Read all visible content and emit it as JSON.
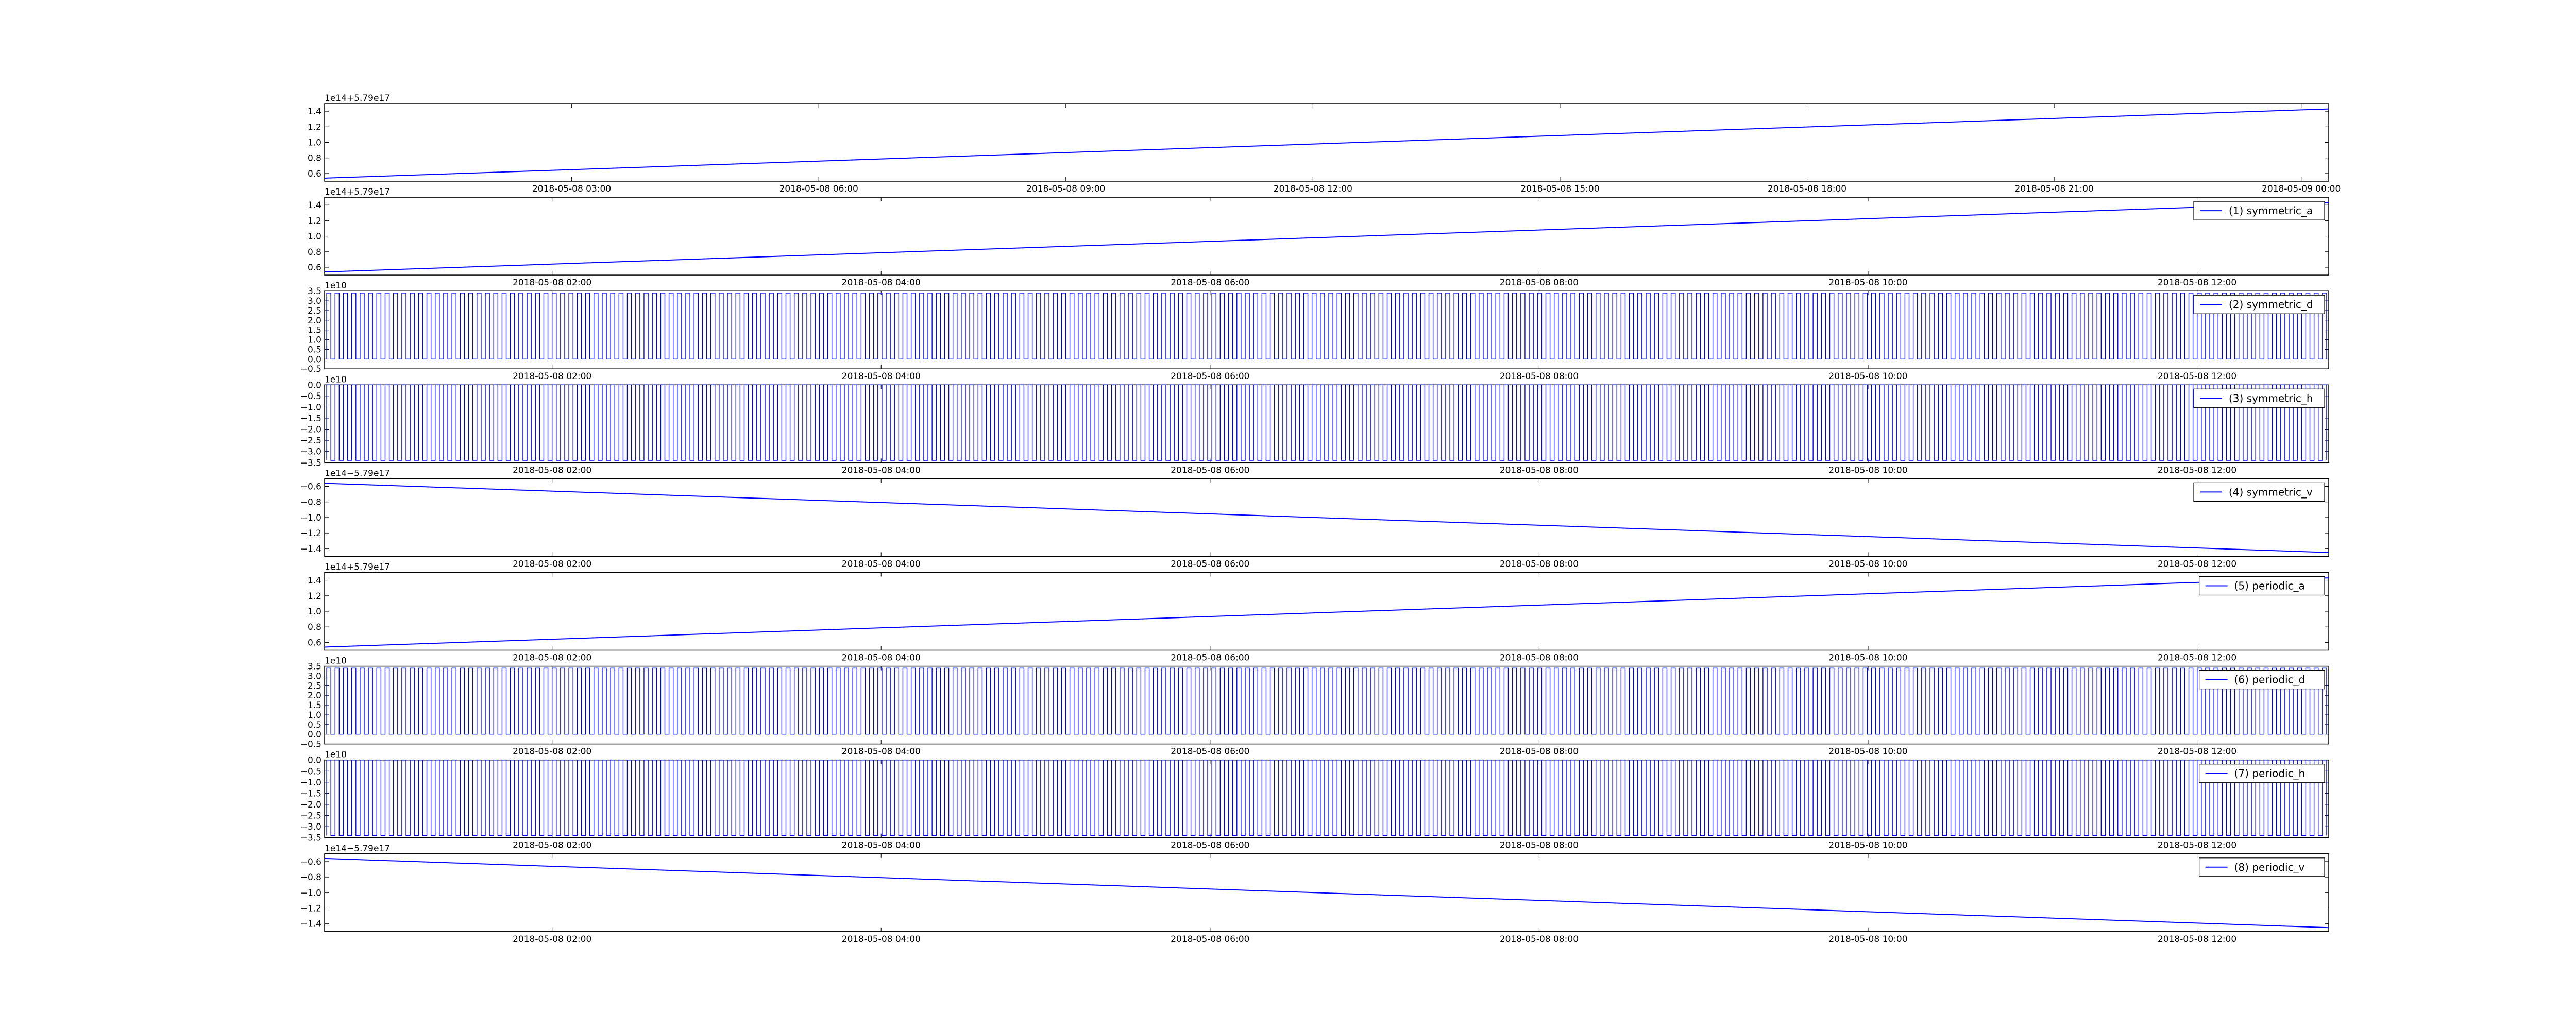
{
  "chart_data": [
    {
      "type": "line",
      "offset_text": "1e14+5.79e17",
      "x_ticks": [
        "2018-05-08 03:00",
        "2018-05-08 06:00",
        "2018-05-08 09:00",
        "2018-05-08 12:00",
        "2018-05-08 15:00",
        "2018-05-08 18:00",
        "2018-05-08 21:00",
        "2018-05-09 00:00"
      ],
      "y_ticks": [
        "0.6",
        "0.8",
        "1.0",
        "1.2",
        "1.4"
      ],
      "ylim": [
        0.5,
        1.5
      ],
      "x_span": [
        "2018-05-08 00:00",
        "2018-05-09 00:20"
      ],
      "series": [
        {
          "name": "",
          "start": 0.54,
          "end": 1.43,
          "color": "#0000ff"
        }
      ],
      "legend": null
    },
    {
      "type": "line",
      "offset_text": "1e14+5.79e17",
      "x_ticks": [
        "2018-05-08 02:00",
        "2018-05-08 04:00",
        "2018-05-08 06:00",
        "2018-05-08 08:00",
        "2018-05-08 10:00",
        "2018-05-08 12:00"
      ],
      "y_ticks": [
        "0.6",
        "0.8",
        "1.0",
        "1.2",
        "1.4"
      ],
      "ylim": [
        0.5,
        1.5
      ],
      "x_span": [
        "2018-05-08 00:37",
        "2018-05-08 12:48"
      ],
      "series": [
        {
          "name": "(1) symmetric_a",
          "start": 0.54,
          "end": 1.43,
          "color": "#0000ff"
        }
      ],
      "legend": "top-right"
    },
    {
      "type": "line",
      "offset_text": "1e10",
      "x_ticks": [
        "2018-05-08 02:00",
        "2018-05-08 04:00",
        "2018-05-08 06:00",
        "2018-05-08 08:00",
        "2018-05-08 10:00",
        "2018-05-08 12:00"
      ],
      "y_ticks": [
        "−0.5",
        "0.0",
        "0.5",
        "1.0",
        "1.5",
        "2.0",
        "2.5",
        "3.0",
        "3.5"
      ],
      "ylim": [
        -0.5,
        3.5
      ],
      "x_span": [
        "2018-05-08 00:37",
        "2018-05-08 12:48"
      ],
      "series": [
        {
          "name": "(2) symmetric_d",
          "low": 0.0,
          "high": 3.4,
          "spikes": 240,
          "color": "#0000ff"
        }
      ],
      "legend": "top-right"
    },
    {
      "type": "line",
      "offset_text": "1e10",
      "x_ticks": [
        "2018-05-08 02:00",
        "2018-05-08 04:00",
        "2018-05-08 06:00",
        "2018-05-08 08:00",
        "2018-05-08 10:00",
        "2018-05-08 12:00"
      ],
      "y_ticks": [
        "−3.5",
        "−3.0",
        "−2.5",
        "−2.0",
        "−1.5",
        "−1.0",
        "−0.5",
        "0.0"
      ],
      "ylim": [
        -3.5,
        0.0
      ],
      "x_span": [
        "2018-05-08 00:37",
        "2018-05-08 12:48"
      ],
      "series": [
        {
          "name": "(3) symmetric_h",
          "low": -3.4,
          "high": 0.0,
          "spikes": 240,
          "color": "#0000ff"
        }
      ],
      "legend": "top-right"
    },
    {
      "type": "line",
      "offset_text": "1e14−5.79e17",
      "x_ticks": [
        "2018-05-08 02:00",
        "2018-05-08 04:00",
        "2018-05-08 06:00",
        "2018-05-08 08:00",
        "2018-05-08 10:00",
        "2018-05-08 12:00"
      ],
      "y_ticks": [
        "−1.4",
        "−1.2",
        "−1.0",
        "−0.8",
        "−0.6"
      ],
      "ylim": [
        -1.5,
        -0.5
      ],
      "x_span": [
        "2018-05-08 00:37",
        "2018-05-08 12:48"
      ],
      "series": [
        {
          "name": "(4) symmetric_v",
          "start": -0.56,
          "end": -1.45,
          "color": "#0000ff"
        }
      ],
      "legend": "top-right"
    },
    {
      "type": "line",
      "offset_text": "1e14+5.79e17",
      "x_ticks": [
        "2018-05-08 02:00",
        "2018-05-08 04:00",
        "2018-05-08 06:00",
        "2018-05-08 08:00",
        "2018-05-08 10:00",
        "2018-05-08 12:00"
      ],
      "y_ticks": [
        "0.6",
        "0.8",
        "1.0",
        "1.2",
        "1.4"
      ],
      "ylim": [
        0.5,
        1.5
      ],
      "x_span": [
        "2018-05-08 00:37",
        "2018-05-08 12:48"
      ],
      "series": [
        {
          "name": "(5) periodic_a",
          "start": 0.54,
          "end": 1.43,
          "color": "#0000ff"
        }
      ],
      "legend": "top-right"
    },
    {
      "type": "line",
      "offset_text": "1e10",
      "x_ticks": [
        "2018-05-08 02:00",
        "2018-05-08 04:00",
        "2018-05-08 06:00",
        "2018-05-08 08:00",
        "2018-05-08 10:00",
        "2018-05-08 12:00"
      ],
      "y_ticks": [
        "−0.5",
        "0.0",
        "0.5",
        "1.0",
        "1.5",
        "2.0",
        "2.5",
        "3.0",
        "3.5"
      ],
      "ylim": [
        -0.5,
        3.5
      ],
      "x_span": [
        "2018-05-08 00:37",
        "2018-05-08 12:48"
      ],
      "series": [
        {
          "name": "(6) periodic_d",
          "low": 0.0,
          "high": 3.4,
          "spikes": 240,
          "color": "#0000ff"
        }
      ],
      "legend": "top-right"
    },
    {
      "type": "line",
      "offset_text": "1e10",
      "x_ticks": [
        "2018-05-08 02:00",
        "2018-05-08 04:00",
        "2018-05-08 06:00",
        "2018-05-08 08:00",
        "2018-05-08 10:00",
        "2018-05-08 12:00"
      ],
      "y_ticks": [
        "−3.5",
        "−3.0",
        "−2.5",
        "−2.0",
        "−1.5",
        "−1.0",
        "−0.5",
        "0.0"
      ],
      "ylim": [
        -3.5,
        0.0
      ],
      "x_span": [
        "2018-05-08 00:37",
        "2018-05-08 12:48"
      ],
      "series": [
        {
          "name": "(7) periodic_h",
          "low": -3.4,
          "high": 0.0,
          "spikes": 240,
          "color": "#0000ff"
        }
      ],
      "legend": "top-right"
    },
    {
      "type": "line",
      "offset_text": "1e14−5.79e17",
      "x_ticks": [
        "2018-05-08 02:00",
        "2018-05-08 04:00",
        "2018-05-08 06:00",
        "2018-05-08 08:00",
        "2018-05-08 10:00",
        "2018-05-08 12:00"
      ],
      "y_ticks": [
        "−1.4",
        "−1.2",
        "−1.0",
        "−0.8",
        "−0.6"
      ],
      "ylim": [
        -1.5,
        -0.5
      ],
      "x_span": [
        "2018-05-08 00:37",
        "2018-05-08 12:48"
      ],
      "series": [
        {
          "name": "(8) periodic_v",
          "start": -0.56,
          "end": -1.45,
          "color": "#0000ff"
        }
      ],
      "legend": "top-right"
    }
  ]
}
